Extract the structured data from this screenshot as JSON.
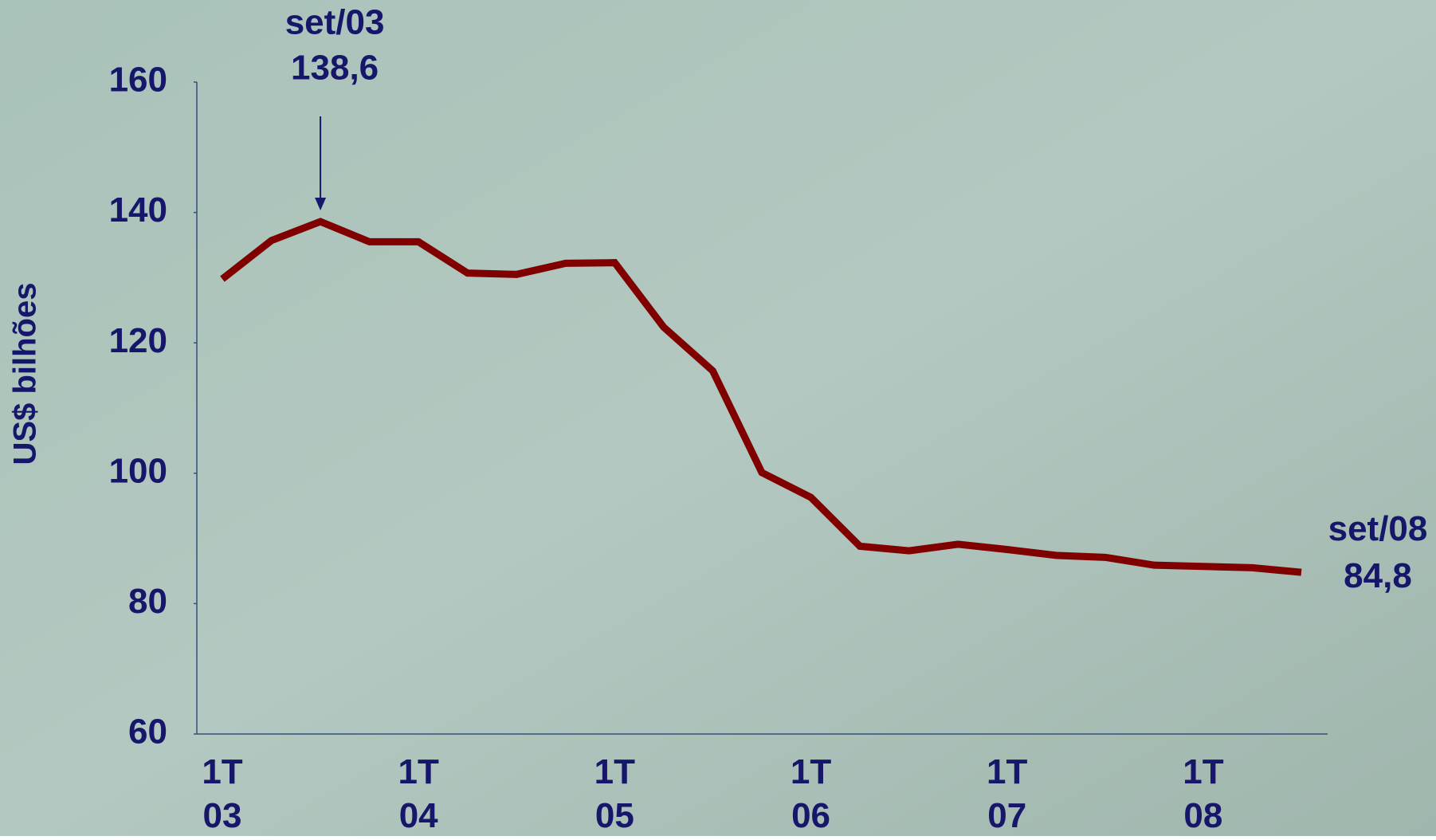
{
  "chart_data": {
    "type": "line",
    "y_label": "US$ bilhões",
    "categories": [
      [
        "1T",
        "03"
      ],
      null,
      null,
      null,
      [
        "1T",
        "04"
      ],
      null,
      null,
      null,
      [
        "1T",
        "05"
      ],
      null,
      null,
      null,
      [
        "1T",
        "06"
      ],
      null,
      null,
      null,
      [
        "1T",
        "07"
      ],
      null,
      null,
      null,
      [
        "1T",
        "08"
      ],
      null,
      null
    ],
    "series": [
      {
        "color": "#800000",
        "values": [
          129.8,
          135.7,
          138.6,
          135.5,
          135.5,
          130.7,
          130.5,
          132.2,
          132.3,
          122.4,
          115.7,
          100.1,
          96.3,
          88.8,
          88.1,
          89.1,
          88.3,
          87.4,
          87.1,
          85.9,
          85.7,
          85.5,
          84.8
        ],
        "value_labels": [
          null,
          null,
          "138,6",
          null,
          null,
          null,
          null,
          null,
          null,
          null,
          null,
          null,
          null,
          null,
          null,
          null,
          null,
          null,
          null,
          null,
          null,
          null,
          "84,8"
        ],
        "annotations": [
          null,
          null,
          "set/03",
          null,
          null,
          null,
          null,
          null,
          null,
          null,
          null,
          null,
          null,
          null,
          null,
          null,
          null,
          null,
          null,
          null,
          null,
          null,
          "set/08"
        ]
      }
    ],
    "ylim": [
      60,
      160
    ],
    "yticks": [
      60,
      80,
      100,
      120,
      140,
      160
    ],
    "grid": false
  }
}
